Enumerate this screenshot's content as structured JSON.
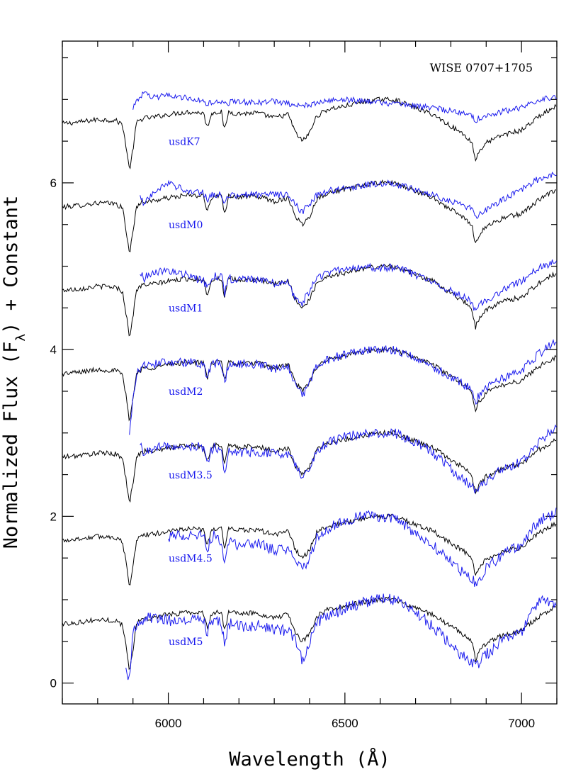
{
  "chart_data": {
    "type": "line",
    "annotation": "WISE 0707+1705",
    "xlabel": "Wavelength (Å)",
    "ylabel_parts": [
      "Normalized Flux (F",
      "λ",
      ") + Constant"
    ],
    "xlim": [
      5700,
      7100
    ],
    "ylim": [
      -0.25,
      7.7
    ],
    "xticks": [
      6000,
      6500,
      7000
    ],
    "yticks": [
      0,
      2,
      4,
      6
    ],
    "colors": {
      "target": "#000000",
      "template": "#1a1aee"
    },
    "x_grid": [
      5700,
      5750,
      5800,
      5850,
      5870,
      5880,
      5890,
      5900,
      5910,
      5930,
      5950,
      6000,
      6050,
      6100,
      6110,
      6120,
      6130,
      6150,
      6160,
      6170,
      6200,
      6250,
      6300,
      6340,
      6360,
      6380,
      6400,
      6420,
      6450,
      6500,
      6550,
      6600,
      6640,
      6700,
      6750,
      6800,
      6840,
      6860,
      6870,
      6880,
      6900,
      6950,
      7000,
      7050,
      7100
    ],
    "target_shape": [
      -0.29,
      -0.27,
      -0.24,
      -0.25,
      -0.3,
      -0.55,
      -0.85,
      -0.6,
      -0.28,
      -0.22,
      -0.22,
      -0.18,
      -0.15,
      -0.16,
      -0.35,
      -0.19,
      -0.15,
      -0.15,
      -0.38,
      -0.15,
      -0.17,
      -0.16,
      -0.22,
      -0.18,
      -0.4,
      -0.5,
      -0.4,
      -0.2,
      -0.12,
      -0.08,
      -0.03,
      0.0,
      0.0,
      -0.1,
      -0.18,
      -0.32,
      -0.43,
      -0.52,
      -0.73,
      -0.62,
      -0.52,
      -0.42,
      -0.37,
      -0.2,
      -0.08
    ],
    "series": [
      {
        "label": "usdK7",
        "offset": 7,
        "start": 5900,
        "values": [
          0,
          0,
          0,
          0,
          0,
          0,
          0,
          -0.1,
          -0.02,
          0.08,
          0.02,
          0.05,
          0.02,
          -0.02,
          -0.06,
          -0.04,
          -0.03,
          -0.03,
          -0.06,
          -0.04,
          -0.02,
          -0.04,
          -0.02,
          -0.05,
          -0.08,
          -0.08,
          -0.06,
          -0.04,
          -0.02,
          0.0,
          -0.02,
          -0.04,
          -0.05,
          -0.08,
          -0.1,
          -0.14,
          -0.16,
          -0.2,
          -0.25,
          -0.22,
          -0.2,
          -0.14,
          -0.1,
          0.0,
          0.03
        ]
      },
      {
        "label": "usdM0",
        "offset": 6,
        "start": 5920,
        "values": [
          0,
          0,
          0,
          0,
          0,
          0,
          0,
          0,
          0,
          -0.25,
          -0.15,
          0.0,
          -0.1,
          -0.12,
          -0.2,
          -0.16,
          -0.14,
          -0.14,
          -0.25,
          -0.16,
          -0.15,
          -0.14,
          -0.14,
          -0.15,
          -0.26,
          -0.35,
          -0.25,
          -0.15,
          -0.1,
          -0.06,
          -0.03,
          -0.01,
          -0.01,
          -0.08,
          -0.14,
          -0.22,
          -0.28,
          -0.32,
          -0.42,
          -0.38,
          -0.32,
          -0.2,
          -0.08,
          0.05,
          0.1
        ]
      },
      {
        "label": "usdM1",
        "offset": 5,
        "start": 5920,
        "values": [
          0,
          0,
          0,
          0,
          0,
          0,
          0,
          0,
          0,
          -0.15,
          -0.08,
          -0.05,
          -0.1,
          -0.18,
          -0.25,
          -0.15,
          -0.12,
          -0.12,
          -0.32,
          -0.15,
          -0.16,
          -0.16,
          -0.2,
          -0.2,
          -0.4,
          -0.45,
          -0.28,
          -0.15,
          -0.08,
          -0.02,
          0.0,
          -0.02,
          -0.02,
          -0.1,
          -0.2,
          -0.3,
          -0.38,
          -0.42,
          -0.55,
          -0.48,
          -0.4,
          -0.28,
          -0.18,
          -0.02,
          0.05
        ]
      },
      {
        "label": "usdM2",
        "offset": 4,
        "start": 5890,
        "values": [
          0,
          0,
          0,
          0,
          0,
          0,
          -1.0,
          -0.6,
          -0.3,
          -0.2,
          -0.18,
          -0.15,
          -0.15,
          -0.17,
          -0.36,
          -0.2,
          -0.16,
          -0.16,
          -0.4,
          -0.18,
          -0.18,
          -0.17,
          -0.24,
          -0.19,
          -0.45,
          -0.55,
          -0.4,
          -0.2,
          -0.12,
          -0.06,
          -0.02,
          0.0,
          0.0,
          -0.1,
          -0.2,
          -0.34,
          -0.42,
          -0.48,
          -0.62,
          -0.55,
          -0.45,
          -0.34,
          -0.25,
          -0.05,
          0.1
        ]
      },
      {
        "label": "usdM3.5",
        "offset": 3,
        "start": 5920,
        "values": [
          0,
          0,
          0,
          0,
          0,
          0,
          0,
          0,
          0,
          -0.25,
          -0.2,
          -0.15,
          -0.15,
          -0.18,
          -0.38,
          -0.22,
          -0.18,
          -0.2,
          -0.5,
          -0.2,
          -0.24,
          -0.22,
          -0.25,
          -0.25,
          -0.38,
          -0.58,
          -0.44,
          -0.2,
          -0.12,
          -0.05,
          -0.01,
          0.0,
          0.0,
          -0.12,
          -0.24,
          -0.44,
          -0.58,
          -0.64,
          -0.7,
          -0.66,
          -0.58,
          -0.42,
          -0.35,
          -0.1,
          0.1
        ]
      },
      {
        "label": "usdM4.5",
        "offset": 2,
        "start": 6000,
        "values": [
          0,
          0,
          0,
          0,
          0,
          0,
          0,
          0,
          0,
          0,
          0,
          -0.25,
          -0.22,
          -0.2,
          -0.4,
          -0.26,
          -0.22,
          -0.3,
          -0.55,
          -0.28,
          -0.35,
          -0.32,
          -0.4,
          -0.42,
          -0.5,
          -0.65,
          -0.5,
          -0.25,
          -0.15,
          -0.05,
          0.0,
          0.0,
          -0.02,
          -0.2,
          -0.35,
          -0.55,
          -0.7,
          -0.75,
          -0.8,
          -0.75,
          -0.62,
          -0.45,
          -0.35,
          -0.05,
          0.05
        ]
      },
      {
        "label": "usdM5",
        "offset": 1,
        "start": 5880,
        "values": [
          0,
          0,
          0,
          0,
          0,
          -0.8,
          -1.0,
          -0.4,
          -0.3,
          -0.24,
          -0.22,
          -0.25,
          -0.26,
          -0.24,
          -0.42,
          -0.28,
          -0.24,
          -0.28,
          -0.55,
          -0.28,
          -0.33,
          -0.3,
          -0.35,
          -0.38,
          -0.5,
          -0.75,
          -0.5,
          -0.28,
          -0.2,
          -0.1,
          -0.04,
          0.0,
          0.0,
          -0.15,
          -0.32,
          -0.55,
          -0.7,
          -0.76,
          -0.8,
          -0.76,
          -0.66,
          -0.48,
          -0.4,
          0.0,
          -0.05
        ]
      }
    ]
  }
}
